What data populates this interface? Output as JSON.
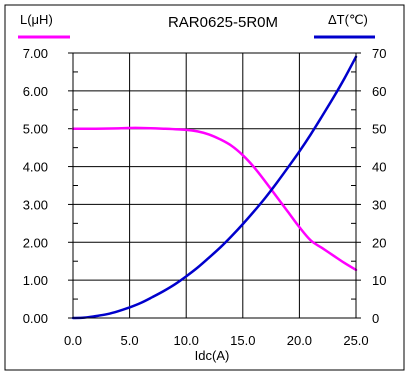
{
  "chart_data": {
    "type": "line",
    "title": "RAR0625-5R0M",
    "xlabel": "Idc(A)",
    "ylabel_left": "L(μH)",
    "ylabel_right": "ΔT(℃)",
    "xlim": [
      0,
      25
    ],
    "ylim_left": [
      0,
      7
    ],
    "ylim_right": [
      0,
      70
    ],
    "x_ticks": [
      "0.0",
      "5.0",
      "10.0",
      "15.0",
      "20.0",
      "25.0"
    ],
    "y_left_ticks": [
      "0.00",
      "1.00",
      "2.00",
      "3.00",
      "4.00",
      "5.00",
      "6.00",
      "7.00"
    ],
    "y_right_ticks": [
      "0",
      "10",
      "20",
      "30",
      "40",
      "50",
      "60",
      "70"
    ],
    "grid": true,
    "series": [
      {
        "name": "L(μH)",
        "axis": "left",
        "color": "#ff00ff",
        "x": [
          0,
          2,
          4,
          5,
          6,
          8,
          10,
          11,
          12,
          13,
          14,
          15,
          16,
          17,
          18,
          19,
          20,
          21,
          22,
          23,
          24,
          25
        ],
        "y": [
          5.0,
          5.0,
          5.01,
          5.02,
          5.02,
          5.0,
          4.97,
          4.93,
          4.85,
          4.72,
          4.55,
          4.3,
          3.98,
          3.6,
          3.2,
          2.8,
          2.4,
          2.05,
          1.85,
          1.65,
          1.45,
          1.27
        ]
      },
      {
        "name": "ΔT(℃)",
        "axis": "right",
        "color": "#0000cc",
        "x": [
          0,
          1,
          2,
          3,
          4,
          5,
          6,
          7,
          8,
          9,
          10,
          11,
          12,
          13,
          14,
          15,
          16,
          17,
          18,
          19,
          20,
          21,
          22,
          23,
          24,
          25
        ],
        "y": [
          0,
          0.1,
          0.5,
          1.0,
          1.8,
          2.8,
          4.0,
          5.5,
          7.1,
          8.9,
          11.0,
          13.3,
          15.9,
          18.6,
          21.6,
          24.8,
          28.2,
          31.8,
          35.7,
          39.8,
          44.0,
          48.5,
          53.3,
          58.2,
          63.4,
          69.0
        ]
      }
    ]
  }
}
